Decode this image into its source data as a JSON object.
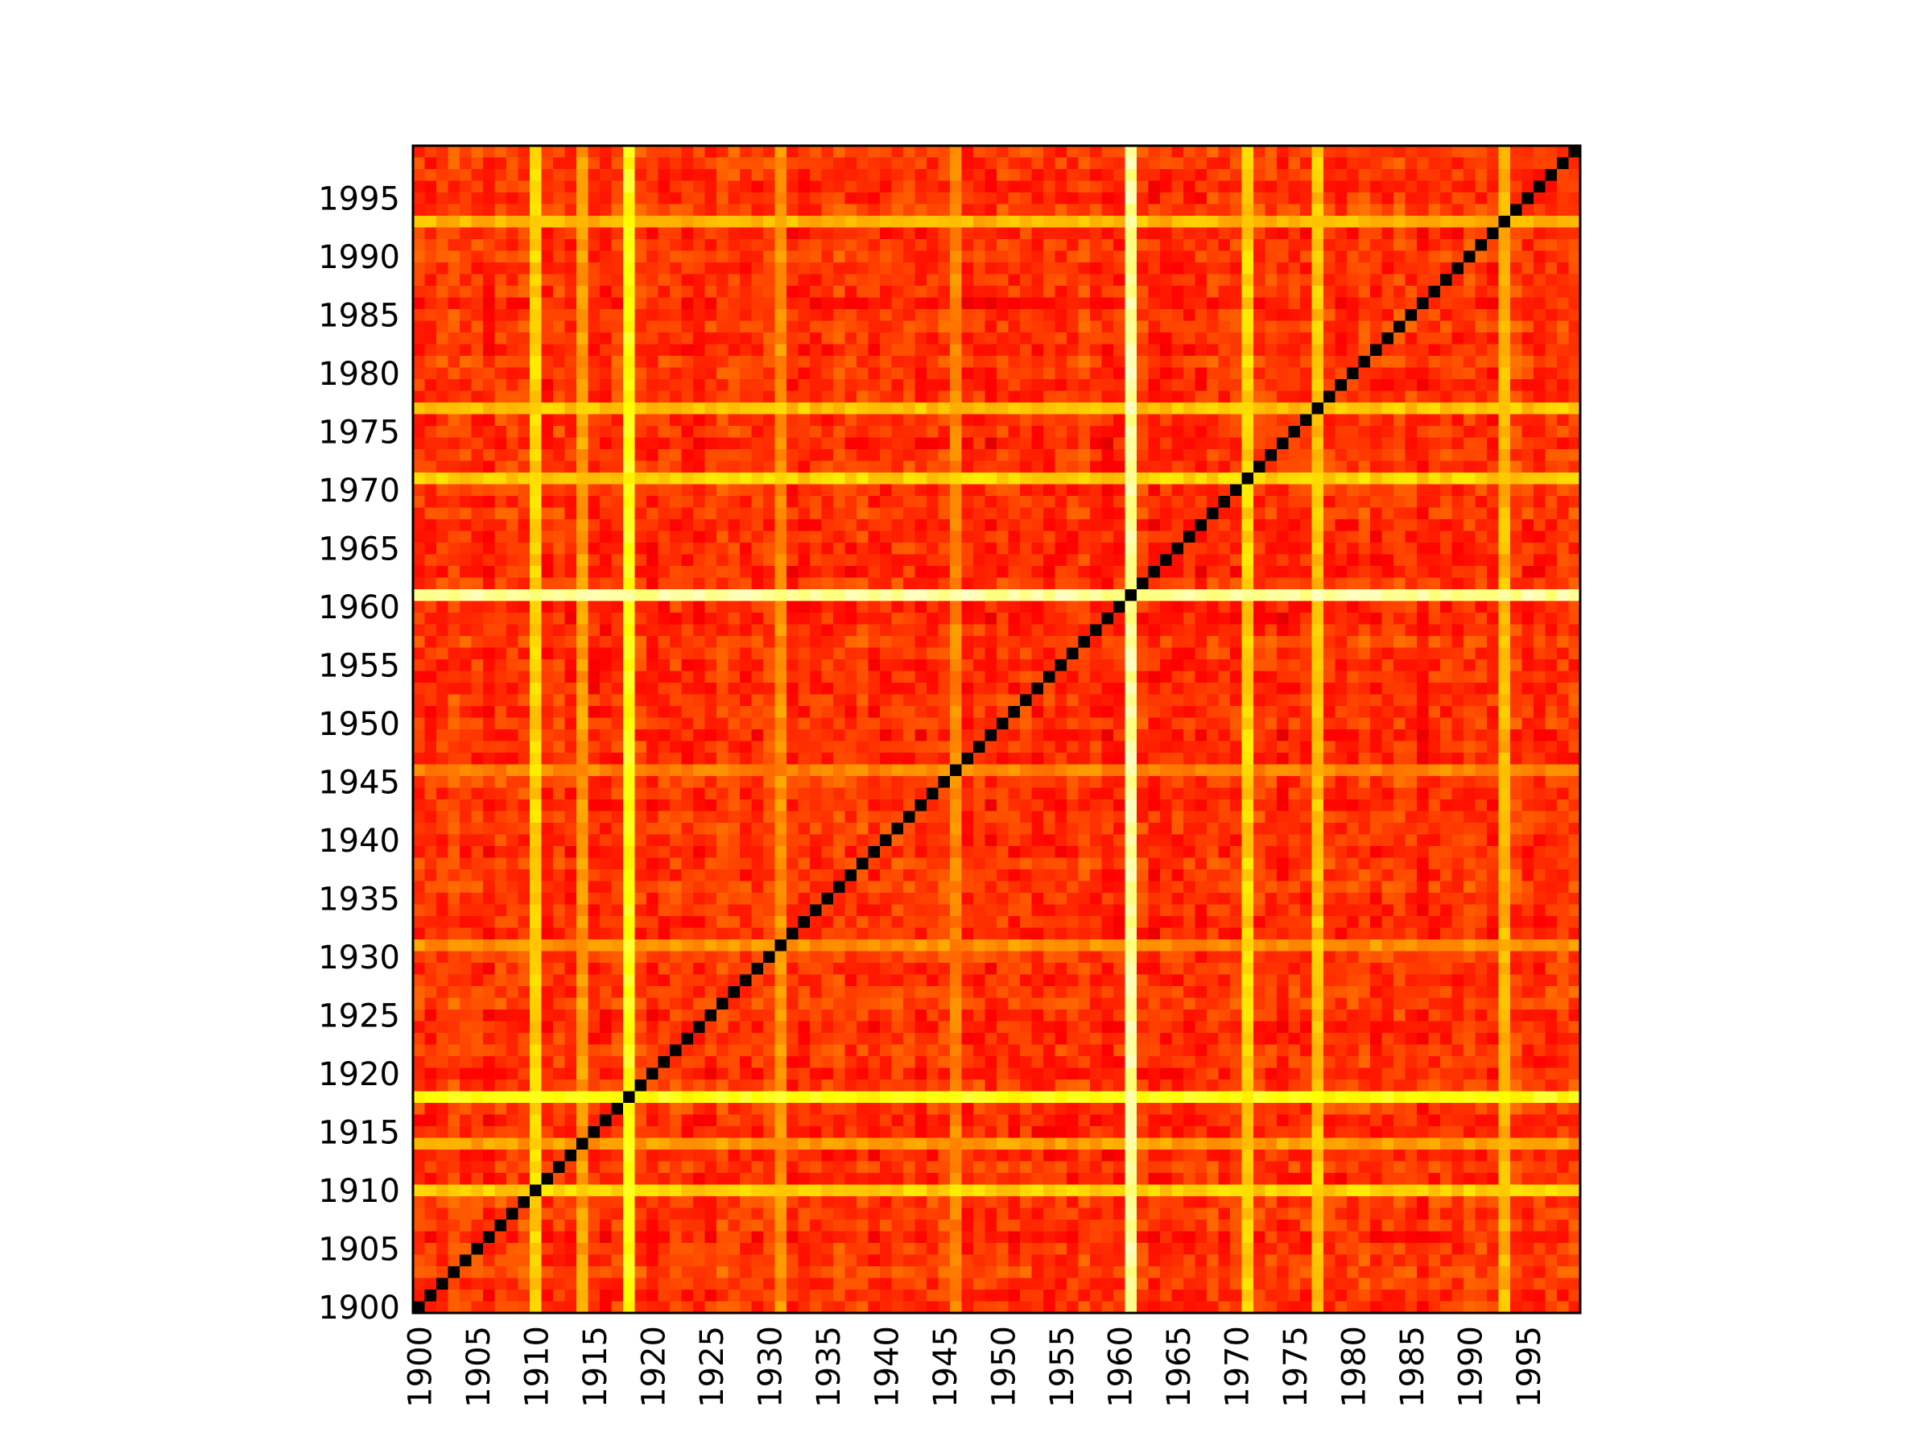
{
  "chart_data": {
    "type": "heatmap",
    "title": "",
    "xlabel": "",
    "ylabel": "",
    "colormap": "hot",
    "color_stops": [
      "#000000",
      "#800000",
      "#ff0000",
      "#ff8000",
      "#ffff00",
      "#ffffff"
    ],
    "x_range": [
      1900,
      1999
    ],
    "y_range": [
      1900,
      1999
    ],
    "xticks": [
      "1900",
      "1905",
      "1910",
      "1915",
      "1920",
      "1925",
      "1930",
      "1935",
      "1940",
      "1945",
      "1950",
      "1955",
      "1960",
      "1965",
      "1970",
      "1975",
      "1980",
      "1985",
      "1990",
      "1995"
    ],
    "yticks": [
      "1900",
      "1905",
      "1910",
      "1915",
      "1920",
      "1925",
      "1930",
      "1935",
      "1940",
      "1945",
      "1950",
      "1955",
      "1960",
      "1965",
      "1970",
      "1975",
      "1980",
      "1985",
      "1990",
      "1995"
    ],
    "diagonal_value": 0,
    "bright_years": [
      1961,
      1918
    ],
    "bright_year_values": {
      "1961": 0.92,
      "1918": 0.78
    },
    "semi_bright_years": [
      1910,
      1971,
      1977,
      1993,
      1914,
      1931,
      1946
    ],
    "semi_bright_year_values": {
      "1910": 0.7,
      "1971": 0.7,
      "1977": 0.68,
      "1993": 0.66,
      "1914": 0.62,
      "1931": 0.6,
      "1946": 0.58
    },
    "background_value_range": [
      0.32,
      0.55
    ],
    "grid": false,
    "colorbar": false
  }
}
